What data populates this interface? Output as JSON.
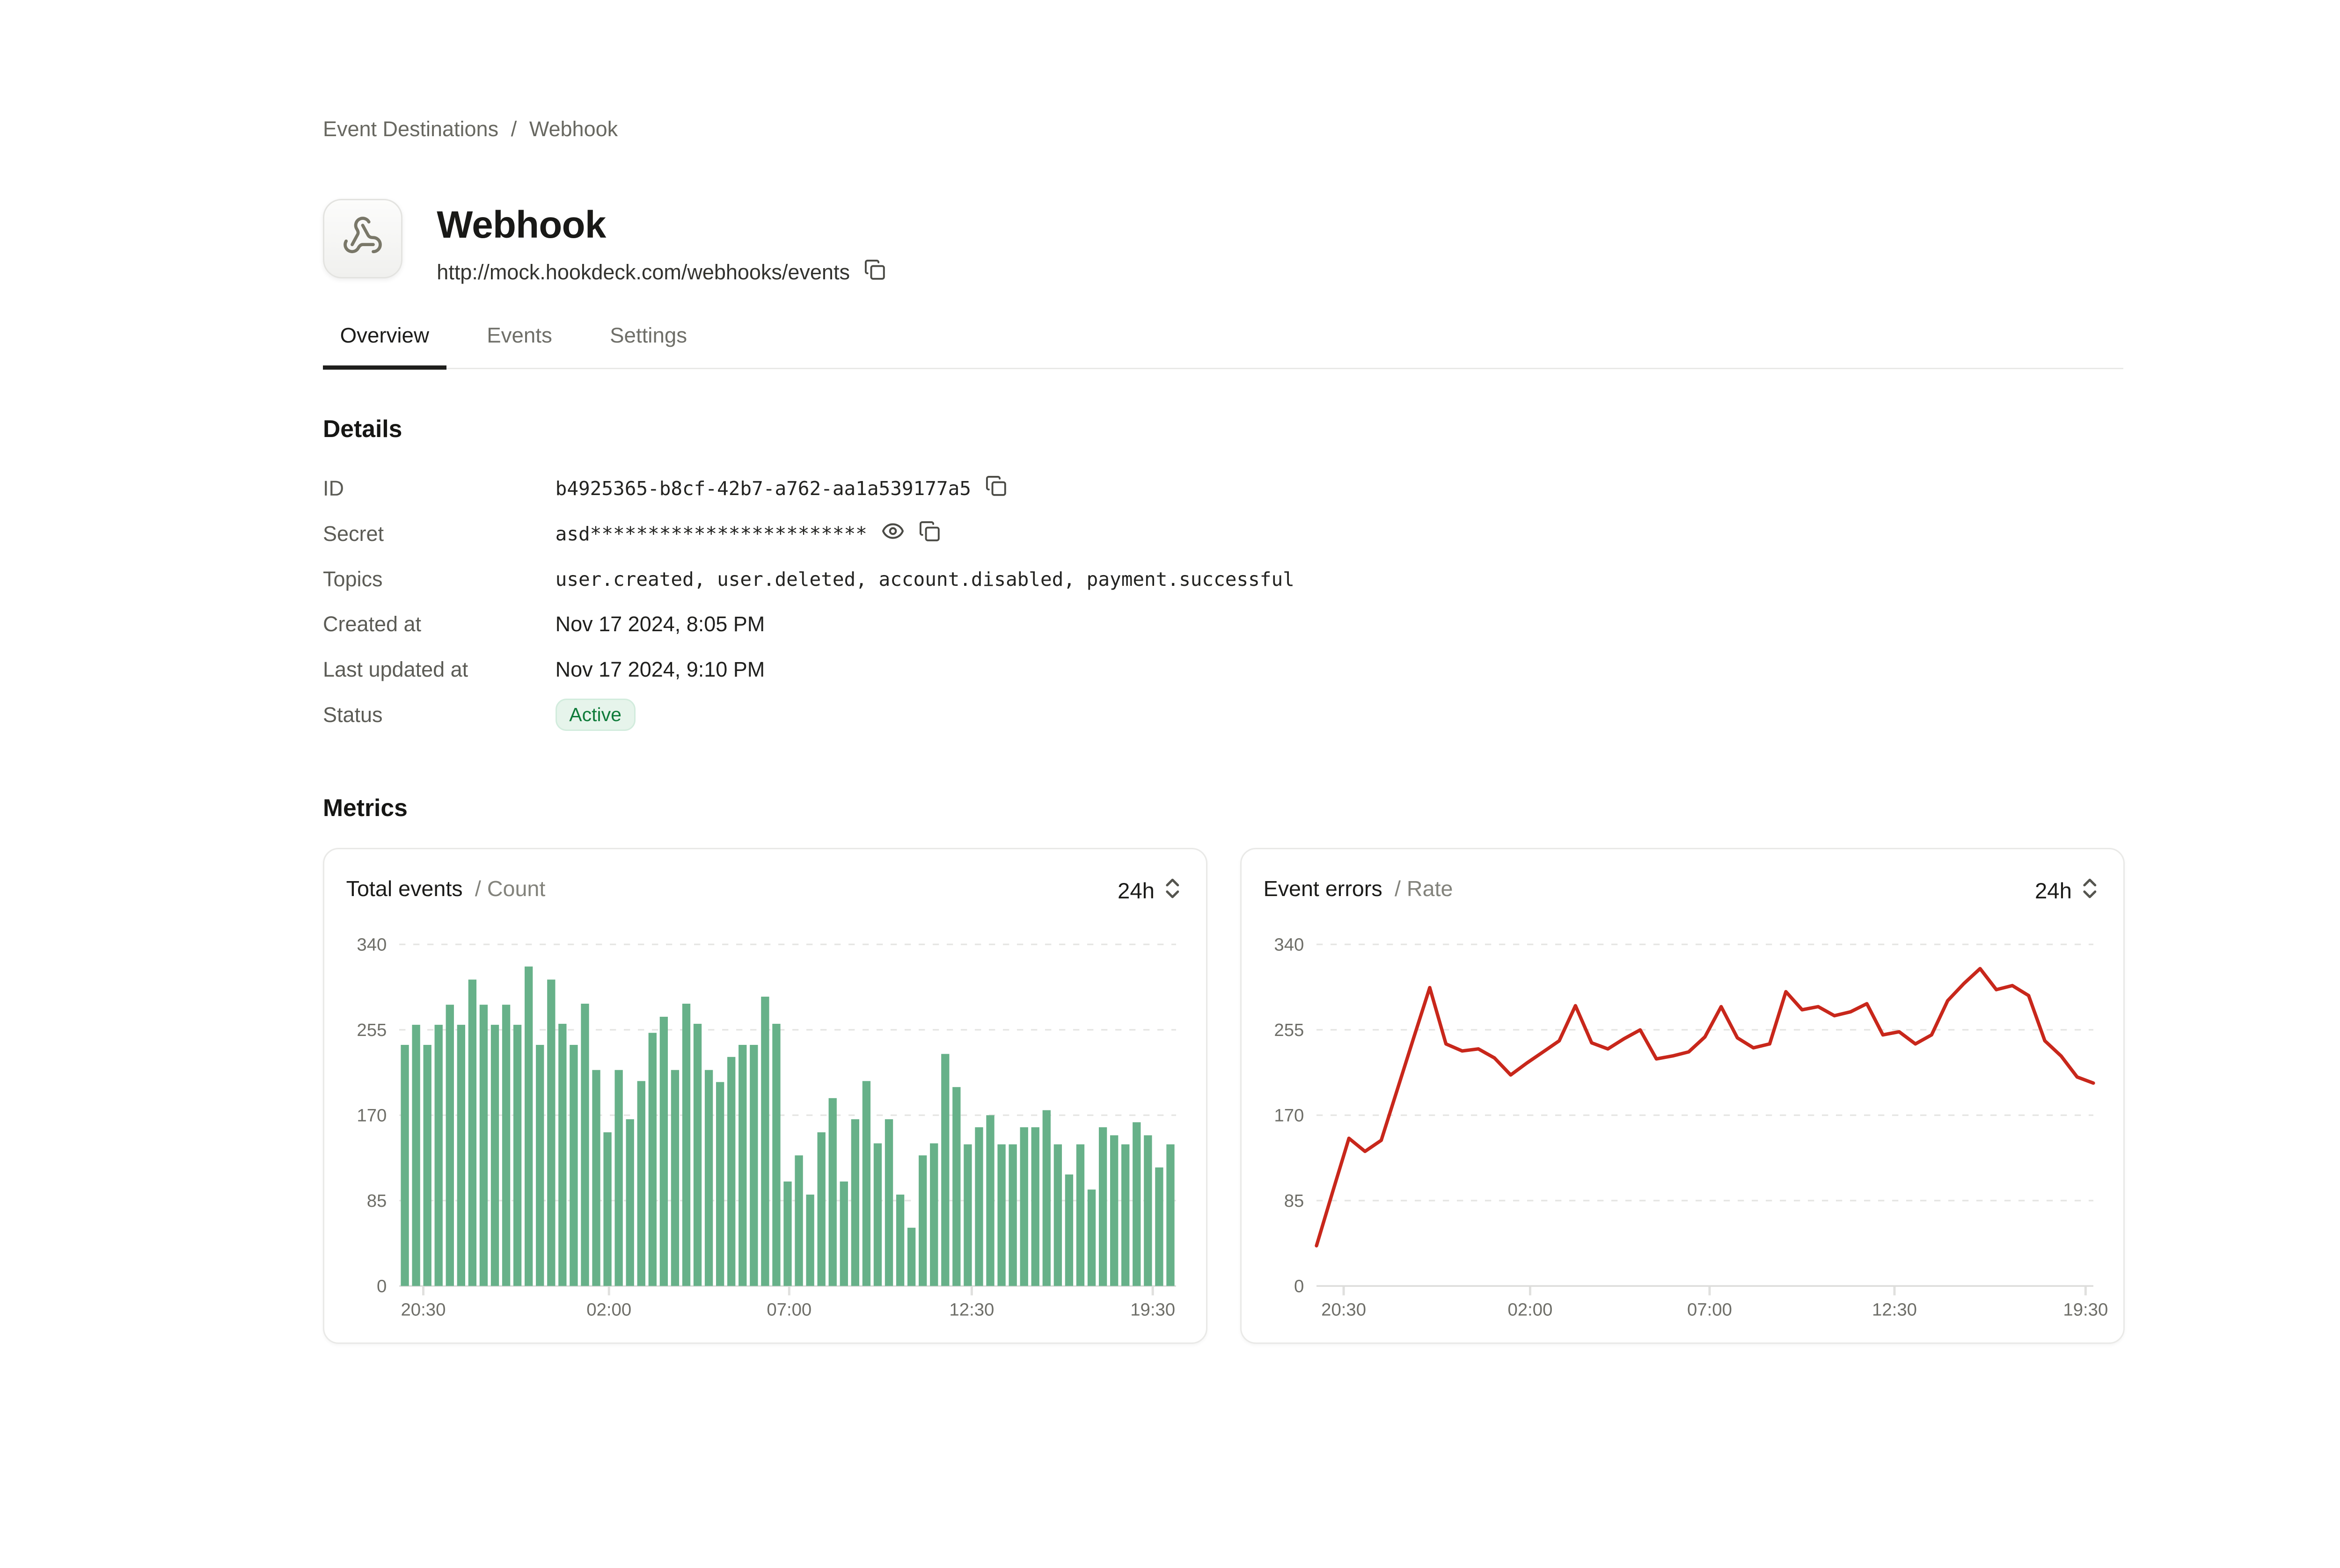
{
  "breadcrumb": {
    "items": [
      "Event Destinations",
      "Webhook"
    ],
    "separator": "/"
  },
  "header": {
    "title": "Webhook",
    "url": "http://mock.hookdeck.com/webhooks/events",
    "icon": "webhook-icon"
  },
  "tabs": [
    {
      "label": "Overview",
      "active": true
    },
    {
      "label": "Events",
      "active": false
    },
    {
      "label": "Settings",
      "active": false
    }
  ],
  "details": {
    "heading": "Details",
    "rows": [
      {
        "label": "ID",
        "value": "b4925365-b8cf-42b7-a762-aa1a539177a5"
      },
      {
        "label": "Secret",
        "value": "asd************************"
      },
      {
        "label": "Topics",
        "value": "user.created, user.deleted, account.disabled, payment.successful"
      },
      {
        "label": "Created at",
        "value": "Nov 17 2024, 8:05 PM"
      },
      {
        "label": "Last updated at",
        "value": "Nov 17 2024, 9:10 PM"
      },
      {
        "label": "Status",
        "badge": "Active"
      }
    ]
  },
  "status_colors": {
    "text": "#0f7b3a",
    "background": "#e6f4eb",
    "border": "#d2ecdd"
  },
  "metrics": {
    "heading": "Metrics"
  },
  "chart_data": [
    {
      "type": "bar",
      "title": "Total events",
      "subtitle": "/ Count",
      "range": "24h",
      "color": "#67b189",
      "ylabel": "Count",
      "ylim": [
        0,
        340
      ],
      "yticks": [
        340,
        255,
        170,
        85,
        0
      ],
      "grid": "dashed-horizontal",
      "xticks": [
        {
          "label": "20:30",
          "pos": 0.031
        },
        {
          "label": "02:00",
          "pos": 0.27
        },
        {
          "label": "07:00",
          "pos": 0.502
        },
        {
          "label": "12:30",
          "pos": 0.737
        },
        {
          "label": "19:30",
          "pos": 0.97
        }
      ],
      "values": [
        240,
        260,
        240,
        260,
        280,
        260,
        305,
        280,
        260,
        280,
        260,
        318,
        240,
        305,
        261,
        240,
        281,
        215,
        153,
        215,
        166,
        204,
        252,
        268,
        215,
        281,
        261,
        215,
        203,
        228,
        240,
        240,
        288,
        261,
        104,
        130,
        91,
        153,
        187,
        104,
        166,
        204,
        142,
        166,
        91,
        58,
        130,
        142,
        231,
        198,
        141,
        158,
        170,
        141,
        141,
        158,
        158,
        175,
        141,
        111,
        141,
        96,
        158,
        150,
        141,
        163,
        150,
        118,
        141
      ]
    },
    {
      "type": "line",
      "title": "Event errors",
      "subtitle": "/ Rate",
      "range": "24h",
      "color": "#c8271b",
      "ylabel": "Rate",
      "ylim": [
        0,
        340
      ],
      "yticks": [
        340,
        255,
        170,
        85,
        0
      ],
      "grid": "dashed-horizontal",
      "xticks": [
        {
          "label": "20:30",
          "pos": 0.035
        },
        {
          "label": "02:00",
          "pos": 0.275
        },
        {
          "label": "07:00",
          "pos": 0.506
        },
        {
          "label": "12:30",
          "pos": 0.744
        },
        {
          "label": "19:30",
          "pos": 0.99
        }
      ],
      "values": [
        40,
        94,
        147,
        134,
        145,
        196,
        247,
        297,
        241,
        234,
        236,
        227,
        210,
        222,
        233,
        244,
        279,
        242,
        236,
        246,
        255,
        226,
        229,
        233,
        248,
        278,
        247,
        237,
        241,
        293,
        275,
        278,
        269,
        273,
        281,
        250,
        253,
        241,
        250,
        284,
        301,
        316,
        295,
        299,
        289,
        244,
        229,
        208,
        202
      ]
    }
  ]
}
